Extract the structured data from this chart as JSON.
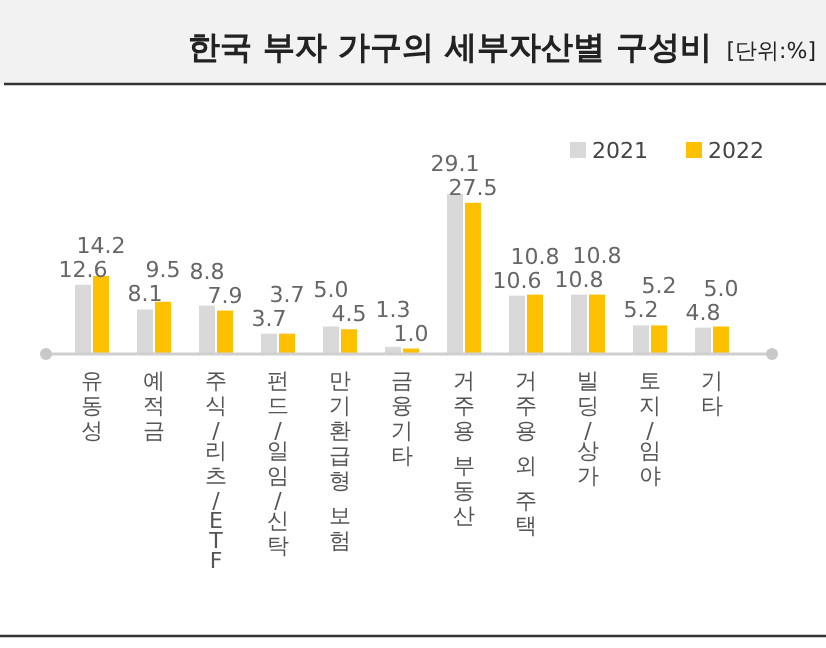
{
  "chart_data": {
    "type": "bar",
    "title": "한국 부자 가구의 세부자산별 구성비",
    "annotations": [
      "[단위:%]"
    ],
    "categories": [
      "유동성",
      "예적금",
      "주식/리츠/ETF",
      "펀드/일임/신탁",
      "만기환급형 보험",
      "금융기타",
      "거주용 부동산",
      "거주용 외 주택",
      "빌딩/상가",
      "토지/임야",
      "기타"
    ],
    "series": [
      {
        "name": "2021",
        "color": "#d9d9d9",
        "values": [
          12.6,
          8.1,
          8.8,
          3.7,
          5.0,
          1.3,
          29.1,
          10.6,
          10.8,
          5.2,
          4.8
        ],
        "value_labels": [
          "12.6",
          "8.1",
          "8.8",
          "3.7",
          "5.0",
          "1.3",
          "29.1",
          "10.6",
          "10.8",
          "5.2",
          "4.8"
        ]
      },
      {
        "name": "2022",
        "color": "#ffc000",
        "values": [
          14.2,
          9.5,
          7.9,
          3.7,
          4.5,
          1.0,
          27.5,
          10.8,
          10.8,
          5.2,
          5.0
        ],
        "value_labels": [
          "14.2",
          "9.5",
          "7.9",
          "3.7",
          "4.5",
          "1.0",
          "27.5",
          "10.8",
          "10.8",
          "5.2",
          "5.0"
        ]
      }
    ],
    "legend": "top right"
  }
}
